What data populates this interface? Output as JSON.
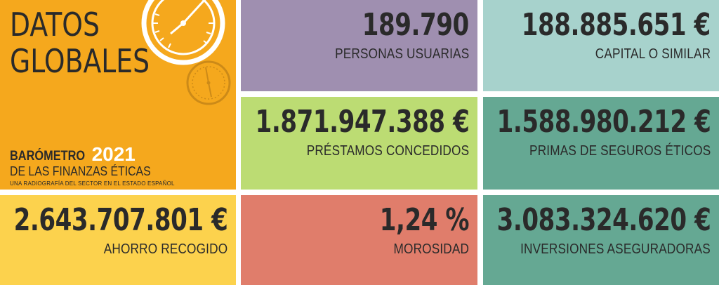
{
  "title": {
    "line1": "DATOS",
    "line2": "GLOBALES"
  },
  "brand": {
    "name": "BARÓMETRO",
    "year": "2021",
    "subtitle": "DE LAS FINANZAS ÉTICAS",
    "tagline": "UNA RADIOGRAFÍA DEL SECTOR EN EL ESTADO ESPAÑOL"
  },
  "stats": [
    {
      "value": "189.790",
      "label": "PERSONAS USUARIAS",
      "color": "#9f8fb0"
    },
    {
      "value": "188.885.651 €",
      "label": "CAPITAL O SIMILAR",
      "color": "#a7d2cc"
    },
    {
      "value": "1.871.947.388 €",
      "label": "PRÉSTAMOS CONCEDIDOS",
      "color": "#bcdc73"
    },
    {
      "value": "1.588.980.212 €",
      "label": "PRIMAS DE SEGUROS ÉTICOS",
      "color": "#65a893"
    },
    {
      "value": "2.643.707.801 €",
      "label": "AHORRO RECOGIDO",
      "color": "#fcd24d"
    },
    {
      "value": "1,24 %",
      "label": "MOROSIDAD",
      "color": "#e07d6b"
    },
    {
      "value": "3.083.324.620 €",
      "label": "INVERSIONES ASEGURADORAS",
      "color": "#65a893"
    }
  ],
  "colors": {
    "title_tile": "#f5a81d",
    "text": "#2a2a2a",
    "gauge": "#ffffff",
    "gauge_small": "#cc8a18"
  },
  "icons": [
    "speedometer-icon",
    "small-gauge-icon"
  ]
}
